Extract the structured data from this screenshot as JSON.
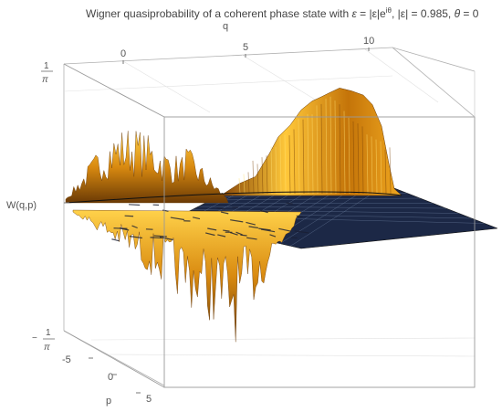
{
  "chart_data": {
    "type": "surface3d",
    "title": "Wigner quasiprobability of a coherent phase state with ε = |ε|e^{iθ}, |ε| = 0.985, θ = 0",
    "title_parts": {
      "prefix": "Wigner quasiprobability of a coherent phase state with ",
      "eps": "ε",
      "mid1": " = |ε|e",
      "sup": "iθ",
      "mid2": ", |ε| = 0.985, ",
      "theta": "θ",
      "suffix": " = 0"
    },
    "xlabel": "q",
    "ylabel": "p",
    "zlabel": "W(q,p)",
    "q_ticks": [
      "0",
      "5",
      "10"
    ],
    "p_ticks": [
      "-5",
      "0",
      "5"
    ],
    "z_ticks": [
      {
        "sign": "",
        "num": "1",
        "den": "π"
      },
      {
        "sign": "−",
        "num": "1",
        "den": "π"
      }
    ],
    "qlim": [
      -3,
      11
    ],
    "plim": [
      -7,
      6
    ],
    "zlim": [
      -0.3183,
      0.3183
    ],
    "colors": {
      "positive": "#d98a10",
      "highlight": "#ffd24a",
      "shadow": "#6b3a05",
      "negative_plane": "#1c2846",
      "grid": "#7a8fb0",
      "box": "#9a9a9a"
    }
  }
}
